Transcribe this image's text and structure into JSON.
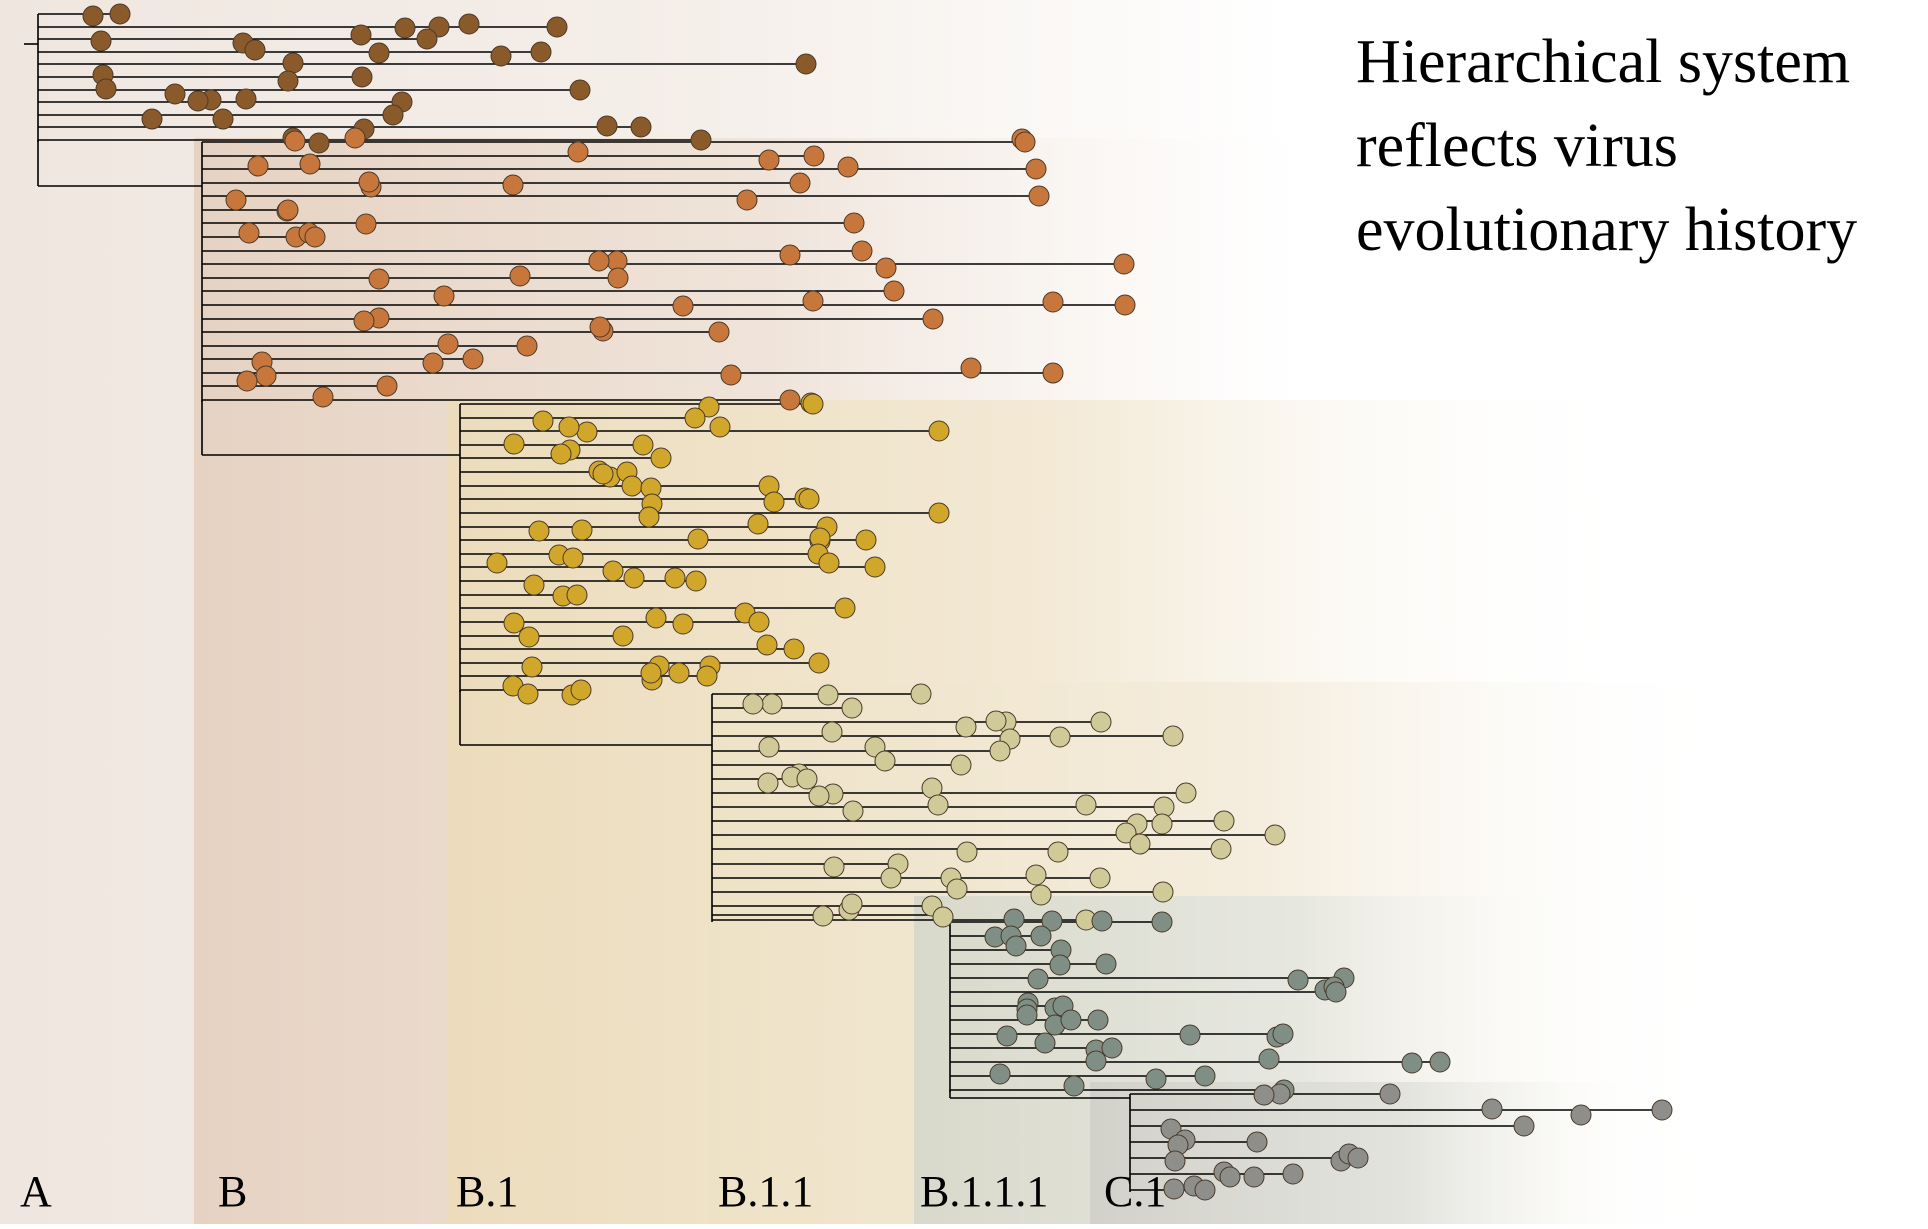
{
  "title_lines": [
    "Hierarchical system",
    "reflects virus",
    "evolutionary history"
  ],
  "clades": [
    {
      "label": "A",
      "color": "#8b5a2b"
    },
    {
      "label": "B",
      "color": "#c8773c"
    },
    {
      "label": "B.1",
      "color": "#d0a72a"
    },
    {
      "label": "B.1.1",
      "color": "#cfca98"
    },
    {
      "label": "B.1.1.1",
      "color": "#7f8f86"
    },
    {
      "label": "C.1",
      "color": "#8e8e8a"
    }
  ],
  "colors": {
    "band_A": "#f1e9e3",
    "band_B": "#ebdccc",
    "band_B1": "#efe1c2",
    "band_B11": "#efe4c8",
    "band_B111": "#dcdccd",
    "band_C1": "#d4d4cc",
    "branch": "#000000"
  }
}
